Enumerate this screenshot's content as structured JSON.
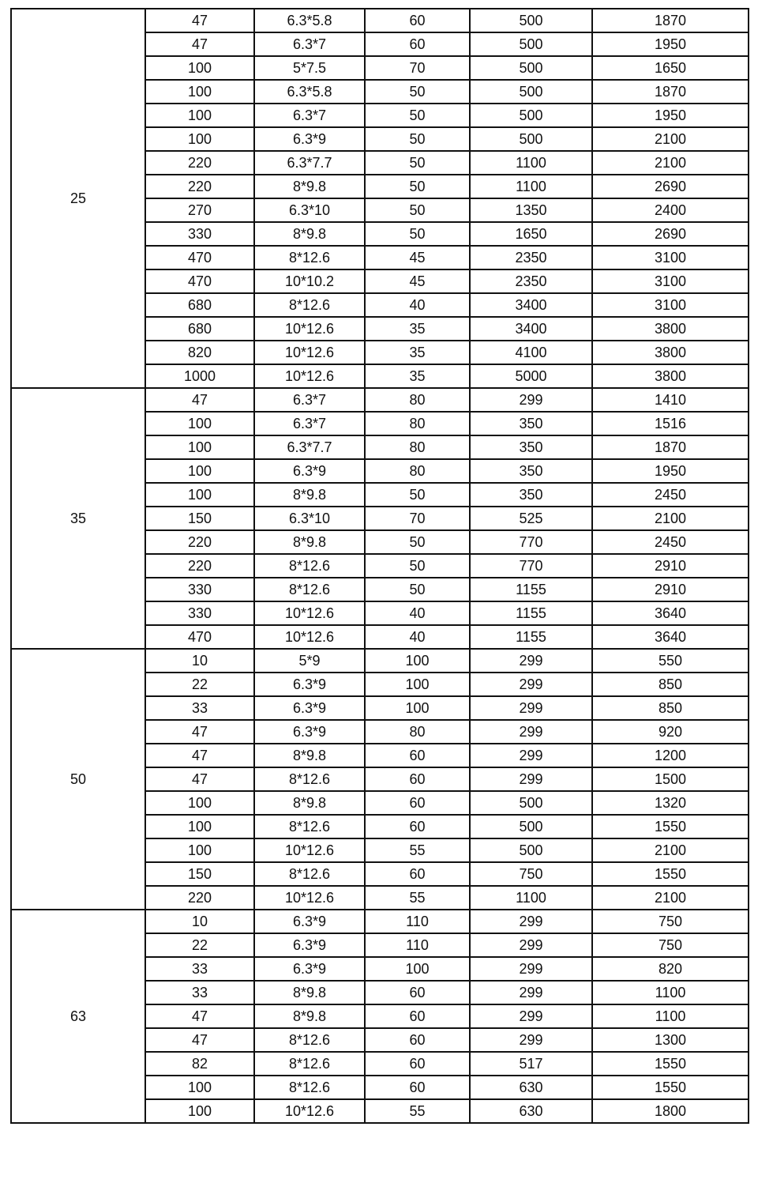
{
  "groups": [
    {
      "voltage": "25",
      "rows": [
        [
          "47",
          "6.3*5.8",
          "60",
          "500",
          "1870"
        ],
        [
          "47",
          "6.3*7",
          "60",
          "500",
          "1950"
        ],
        [
          "100",
          "5*7.5",
          "70",
          "500",
          "1650"
        ],
        [
          "100",
          "6.3*5.8",
          "50",
          "500",
          "1870"
        ],
        [
          "100",
          "6.3*7",
          "50",
          "500",
          "1950"
        ],
        [
          "100",
          "6.3*9",
          "50",
          "500",
          "2100"
        ],
        [
          "220",
          "6.3*7.7",
          "50",
          "1100",
          "2100"
        ],
        [
          "220",
          "8*9.8",
          "50",
          "1100",
          "2690"
        ],
        [
          "270",
          "6.3*10",
          "50",
          "1350",
          "2400"
        ],
        [
          "330",
          "8*9.8",
          "50",
          "1650",
          "2690"
        ],
        [
          "470",
          "8*12.6",
          "45",
          "2350",
          "3100"
        ],
        [
          "470",
          "10*10.2",
          "45",
          "2350",
          "3100"
        ],
        [
          "680",
          "8*12.6",
          "40",
          "3400",
          "3100"
        ],
        [
          "680",
          "10*12.6",
          "35",
          "3400",
          "3800"
        ],
        [
          "820",
          "10*12.6",
          "35",
          "4100",
          "3800"
        ],
        [
          "1000",
          "10*12.6",
          "35",
          "5000",
          "3800"
        ]
      ]
    },
    {
      "voltage": "35",
      "rows": [
        [
          "47",
          "6.3*7",
          "80",
          "299",
          "1410"
        ],
        [
          "100",
          "6.3*7",
          "80",
          "350",
          "1516"
        ],
        [
          "100",
          "6.3*7.7",
          "80",
          "350",
          "1870"
        ],
        [
          "100",
          "6.3*9",
          "80",
          "350",
          "1950"
        ],
        [
          "100",
          "8*9.8",
          "50",
          "350",
          "2450"
        ],
        [
          "150",
          "6.3*10",
          "70",
          "525",
          "2100"
        ],
        [
          "220",
          "8*9.8",
          "50",
          "770",
          "2450"
        ],
        [
          "220",
          "8*12.6",
          "50",
          "770",
          "2910"
        ],
        [
          "330",
          "8*12.6",
          "50",
          "1155",
          "2910"
        ],
        [
          "330",
          "10*12.6",
          "40",
          "1155",
          "3640"
        ],
        [
          "470",
          "10*12.6",
          "40",
          "1155",
          "3640"
        ]
      ]
    },
    {
      "voltage": "50",
      "rows": [
        [
          "10",
          "5*9",
          "100",
          "299",
          "550"
        ],
        [
          "22",
          "6.3*9",
          "100",
          "299",
          "850"
        ],
        [
          "33",
          "6.3*9",
          "100",
          "299",
          "850"
        ],
        [
          "47",
          "6.3*9",
          "80",
          "299",
          "920"
        ],
        [
          "47",
          "8*9.8",
          "60",
          "299",
          "1200"
        ],
        [
          "47",
          "8*12.6",
          "60",
          "299",
          "1500"
        ],
        [
          "100",
          "8*9.8",
          "60",
          "500",
          "1320"
        ],
        [
          "100",
          "8*12.6",
          "60",
          "500",
          "1550"
        ],
        [
          "100",
          "10*12.6",
          "55",
          "500",
          "2100"
        ],
        [
          "150",
          "8*12.6",
          "60",
          "750",
          "1550"
        ],
        [
          "220",
          "10*12.6",
          "55",
          "1100",
          "2100"
        ]
      ]
    },
    {
      "voltage": "63",
      "rows": [
        [
          "10",
          "6.3*9",
          "110",
          "299",
          "750"
        ],
        [
          "22",
          "6.3*9",
          "110",
          "299",
          "750"
        ],
        [
          "33",
          "6.3*9",
          "100",
          "299",
          "820"
        ],
        [
          "33",
          "8*9.8",
          "60",
          "299",
          "1100"
        ],
        [
          "47",
          "8*9.8",
          "60",
          "299",
          "1100"
        ],
        [
          "47",
          "8*12.6",
          "60",
          "299",
          "1300"
        ],
        [
          "82",
          "8*12.6",
          "60",
          "517",
          "1550"
        ],
        [
          "100",
          "8*12.6",
          "60",
          "630",
          "1550"
        ],
        [
          "100",
          "10*12.6",
          "55",
          "630",
          "1800"
        ]
      ]
    }
  ]
}
